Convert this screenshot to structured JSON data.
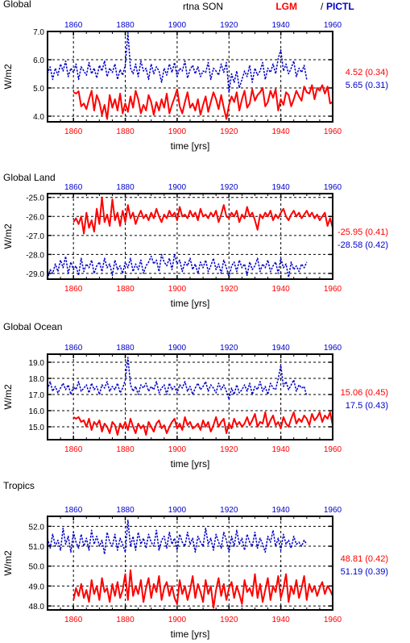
{
  "header": {
    "left_title": "Global",
    "center_title": "rtna SON",
    "legend_lgm": "LGM",
    "legend_sep": "/",
    "legend_pictl": "PICTL"
  },
  "colors": {
    "lgm": "#ff0000",
    "pictl": "#0000cc",
    "axis": "#000000"
  },
  "chart_data": [
    {
      "type": "line",
      "title": "Global",
      "xlabel": "time [yrs]",
      "ylabel": "W/m2",
      "xlim": [
        1850,
        1960
      ],
      "ylim": [
        3.8,
        7.0
      ],
      "x_ticks": [
        1860,
        1880,
        1900,
        1920,
        1940,
        1960
      ],
      "y_ticks": [
        4.0,
        5.0,
        6.0,
        7.0
      ],
      "y_tick_labels": [
        "4.0",
        "5.0",
        "6.0",
        "7.0"
      ],
      "grid": true,
      "series": [
        {
          "name": "LGM",
          "style": "solid",
          "x_start": 1860,
          "x_step": 1,
          "values": [
            4.85,
            4.8,
            4.88,
            4.35,
            4.45,
            4.25,
            4.6,
            4.9,
            4.2,
            4.75,
            4.5,
            4.05,
            4.4,
            3.9,
            4.75,
            4.3,
            4.6,
            4.2,
            4.8,
            4.1,
            4.45,
            4.15,
            4.7,
            4.3,
            4.9,
            4.6,
            4.1,
            4.4,
            4.2,
            4.75,
            4.5,
            4.05,
            4.5,
            4.2,
            4.6,
            4.3,
            4.8,
            4.1,
            4.4,
            4.65,
            4.95,
            4.35,
            4.1,
            4.5,
            4.85,
            4.3,
            4.45,
            4.2,
            4.6,
            4.05,
            4.4,
            4.7,
            4.15,
            4.5,
            4.85,
            4.6,
            4.25,
            4.75,
            4.3,
            3.9,
            4.4,
            4.7,
            4.5,
            4.85,
            4.2,
            4.6,
            4.9,
            4.3,
            4.45,
            4.95,
            4.55,
            4.75,
            4.85,
            5.0,
            4.35,
            4.5,
            4.9,
            4.65,
            4.95,
            4.2,
            4.6,
            4.4,
            4.85,
            4.75,
            4.35,
            4.6,
            4.9,
            4.7,
            4.55,
            5.05,
            4.85,
            4.8,
            5.1,
            4.6,
            5.0,
            4.9,
            5.1,
            4.8,
            5.05,
            4.45,
            4.5
          ],
          "label_mean": "4.52",
          "label_sd": "(0.34)"
        },
        {
          "name": "PICTL",
          "style": "dashed",
          "x_start": 1850,
          "x_step": 1,
          "values": [
            5.5,
            5.75,
            5.3,
            5.7,
            5.45,
            5.85,
            5.6,
            5.95,
            5.4,
            5.7,
            5.55,
            5.85,
            5.3,
            5.75,
            5.6,
            5.45,
            5.9,
            5.5,
            5.7,
            5.35,
            5.8,
            5.6,
            5.95,
            5.4,
            5.7,
            5.55,
            5.85,
            5.3,
            5.65,
            5.45,
            5.8,
            6.95,
            5.7,
            5.5,
            5.85,
            5.4,
            5.95,
            5.6,
            5.7,
            5.3,
            5.85,
            5.5,
            5.75,
            5.6,
            5.2,
            5.7,
            5.45,
            5.85,
            5.55,
            5.9,
            5.4,
            5.7,
            5.6,
            5.95,
            5.35,
            5.65,
            5.8,
            5.5,
            5.75,
            5.4,
            5.6,
            5.55,
            5.9,
            5.3,
            5.7,
            5.6,
            5.45,
            5.85,
            5.55,
            5.9,
            4.85,
            5.5,
            5.2,
            5.6,
            5.0,
            5.3,
            5.6,
            5.4,
            5.8,
            5.2,
            5.7,
            5.45,
            5.6,
            5.9,
            5.3,
            5.7,
            5.55,
            5.85,
            5.5,
            6.05,
            6.35,
            5.6,
            5.85,
            5.5,
            5.7,
            5.95,
            5.4,
            5.7,
            5.55,
            5.8,
            5.3
          ],
          "label_mean": "5.65",
          "label_sd": "(0.31)"
        }
      ]
    },
    {
      "type": "line",
      "title": "Global Land",
      "xlabel": "time [yrs]",
      "ylabel": "W/m2",
      "xlim": [
        1850,
        1960
      ],
      "ylim": [
        -29.3,
        -24.8
      ],
      "x_ticks": [
        1860,
        1880,
        1900,
        1920,
        1940,
        1960
      ],
      "y_ticks": [
        -29,
        -28,
        -27,
        -26,
        -25
      ],
      "y_tick_labels": [
        "-29.0",
        "-28.0",
        "-27.0",
        "-26.0",
        "-25.0"
      ],
      "grid": true,
      "series": [
        {
          "name": "LGM",
          "style": "solid",
          "x_start": 1860,
          "x_step": 1,
          "values": [
            -26.3,
            -26.1,
            -26.4,
            -26.0,
            -26.9,
            -25.8,
            -26.6,
            -26.2,
            -26.8,
            -25.6,
            -26.4,
            -25.0,
            -26.3,
            -25.9,
            -26.5,
            -25.1,
            -26.2,
            -25.8,
            -26.5,
            -25.7,
            -26.3,
            -25.4,
            -26.1,
            -25.8,
            -26.4,
            -26.0,
            -25.7,
            -26.1,
            -25.9,
            -26.2,
            -25.8,
            -26.1,
            -25.6,
            -26.0,
            -26.3,
            -25.9,
            -26.1,
            -25.7,
            -26.0,
            -25.8,
            -26.2,
            -25.5,
            -26.0,
            -25.9,
            -26.1,
            -25.7,
            -26.0,
            -25.8,
            -26.2,
            -25.6,
            -26.0,
            -25.9,
            -26.1,
            -25.8,
            -26.0,
            -25.7,
            -26.3,
            -25.9,
            -25.4,
            -26.0,
            -26.1,
            -25.8,
            -26.0,
            -25.7,
            -26.3,
            -25.9,
            -26.1,
            -25.5,
            -26.0,
            -25.8,
            -26.2,
            -26.7,
            -25.9,
            -26.1,
            -25.8,
            -26.0,
            -25.7,
            -26.2,
            -25.9,
            -26.1,
            -25.8,
            -25.6,
            -26.0,
            -26.2,
            -25.9,
            -25.7,
            -26.0,
            -25.8,
            -26.1,
            -25.9,
            -25.7,
            -26.0,
            -25.8,
            -26.1,
            -25.9,
            -26.2,
            -26.0,
            -25.8,
            -26.5,
            -26.1,
            -26.6
          ],
          "label_mean": "-25.95",
          "label_sd": "(0.41)"
        },
        {
          "name": "PICTL",
          "style": "dashed",
          "x_start": 1850,
          "x_step": 1,
          "values": [
            -29.3,
            -28.8,
            -29.0,
            -28.5,
            -28.9,
            -28.3,
            -28.7,
            -28.1,
            -29.0,
            -28.4,
            -28.8,
            -28.6,
            -29.1,
            -28.2,
            -28.9,
            -28.5,
            -28.7,
            -28.3,
            -29.0,
            -28.6,
            -28.4,
            -28.9,
            -28.2,
            -28.7,
            -28.5,
            -29.1,
            -28.3,
            -28.8,
            -28.6,
            -29.0,
            -28.4,
            -28.7,
            -28.2,
            -28.9,
            -28.5,
            -28.8,
            -28.3,
            -29.0,
            -28.6,
            -28.4,
            -28.1,
            -28.5,
            -28.3,
            -28.9,
            -28.0,
            -28.4,
            -28.6,
            -28.2,
            -28.8,
            -28.0,
            -28.5,
            -28.3,
            -28.9,
            -28.4,
            -28.6,
            -28.2,
            -28.8,
            -28.5,
            -29.0,
            -28.4,
            -28.7,
            -28.3,
            -28.9,
            -28.6,
            -28.2,
            -28.8,
            -28.5,
            -29.0,
            -28.3,
            -28.7,
            -29.2,
            -28.6,
            -28.4,
            -28.9,
            -28.3,
            -28.7,
            -28.5,
            -29.1,
            -28.4,
            -28.8,
            -28.6,
            -28.2,
            -28.9,
            -28.5,
            -28.7,
            -28.3,
            -28.9,
            -28.6,
            -28.4,
            -29.0,
            -28.2,
            -28.7,
            -28.5,
            -29.2,
            -28.4,
            -28.8,
            -28.6,
            -28.9,
            -28.5,
            -28.7,
            -28.4
          ],
          "label_mean": "-28.58",
          "label_sd": "(0.42)"
        }
      ]
    },
    {
      "type": "line",
      "title": "Global Ocean",
      "xlabel": "time [yrs]",
      "ylabel": "W/m2",
      "xlim": [
        1850,
        1960
      ],
      "ylim": [
        14.2,
        19.5
      ],
      "x_ticks": [
        1860,
        1880,
        1900,
        1920,
        1940,
        1960
      ],
      "y_ticks": [
        15,
        16,
        17,
        18,
        19
      ],
      "y_tick_labels": [
        "15.0",
        "16.0",
        "17.0",
        "18.0",
        "19.0"
      ],
      "grid": true,
      "series": [
        {
          "name": "LGM",
          "style": "solid",
          "x_start": 1860,
          "x_step": 1,
          "values": [
            15.6,
            15.5,
            15.6,
            15.3,
            15.4,
            15.0,
            15.5,
            14.8,
            15.3,
            15.1,
            15.4,
            14.7,
            15.2,
            15.0,
            14.6,
            15.3,
            15.1,
            14.5,
            15.2,
            14.9,
            15.3,
            14.8,
            15.5,
            15.0,
            14.6,
            15.2,
            14.9,
            15.1,
            14.5,
            15.3,
            15.0,
            14.7,
            15.2,
            15.4,
            14.9,
            15.1,
            14.6,
            15.0,
            15.3,
            15.5,
            14.9,
            15.2,
            14.8,
            15.6,
            15.1,
            15.3,
            14.9,
            15.0,
            15.2,
            14.8,
            15.4,
            15.0,
            15.3,
            14.7,
            15.1,
            15.6,
            15.0,
            15.3,
            15.5,
            14.6,
            15.2,
            14.9,
            15.5,
            15.1,
            15.3,
            15.0,
            15.2,
            15.6,
            15.1,
            15.4,
            15.8,
            15.0,
            15.3,
            15.2,
            15.9,
            15.0,
            15.4,
            15.7,
            15.1,
            15.3,
            14.9,
            15.6,
            15.2,
            15.0,
            15.5,
            15.9,
            15.2,
            15.5,
            15.3,
            15.7,
            15.5,
            15.1,
            15.8,
            15.4,
            15.6,
            15.9,
            15.3,
            15.7,
            15.5,
            15.9,
            15.1
          ],
          "label_mean": "15.06",
          "label_sd": "(0.45)"
        },
        {
          "name": "PICTL",
          "style": "dashed",
          "x_start": 1850,
          "x_step": 1,
          "values": [
            17.3,
            17.8,
            17.2,
            17.5,
            17.1,
            17.4,
            17.7,
            17.3,
            17.6,
            17.0,
            17.5,
            17.3,
            17.8,
            17.2,
            17.4,
            17.6,
            17.1,
            17.7,
            17.3,
            17.5,
            17.0,
            17.6,
            17.4,
            17.8,
            17.2,
            17.5,
            17.3,
            17.7,
            17.1,
            17.4,
            17.9,
            19.3,
            17.6,
            17.2,
            17.5,
            17.0,
            17.6,
            17.4,
            17.7,
            17.2,
            17.5,
            17.3,
            17.8,
            17.1,
            17.4,
            17.6,
            17.0,
            17.7,
            17.3,
            17.5,
            17.1,
            17.6,
            17.4,
            17.8,
            17.2,
            17.5,
            17.0,
            17.4,
            17.7,
            17.3,
            17.5,
            17.8,
            17.2,
            17.6,
            17.4,
            17.1,
            17.7,
            17.3,
            17.6,
            17.2,
            16.7,
            17.4,
            17.0,
            17.6,
            17.1,
            17.3,
            17.6,
            17.2,
            17.7,
            17.0,
            17.5,
            17.3,
            17.8,
            17.2,
            17.5,
            17.0,
            17.7,
            17.4,
            17.3,
            18.0,
            18.8,
            17.5,
            17.8,
            17.3,
            17.6,
            17.9,
            17.2,
            17.6,
            17.4,
            17.5,
            16.9
          ],
          "label_mean": "17.5",
          "label_sd": "(0.43)"
        }
      ]
    },
    {
      "type": "line",
      "title": "Tropics",
      "xlabel": "time [yrs]",
      "ylabel": "W/m2",
      "xlim": [
        1850,
        1960
      ],
      "ylim": [
        47.8,
        52.5
      ],
      "x_ticks": [
        1860,
        1880,
        1900,
        1920,
        1940,
        1960
      ],
      "y_ticks": [
        48,
        49,
        50,
        51,
        52
      ],
      "y_tick_labels": [
        "48.0",
        "49.0",
        "50.0",
        "51.0",
        "52.0"
      ],
      "grid": true,
      "series": [
        {
          "name": "LGM",
          "style": "solid",
          "x_start": 1860,
          "x_step": 1,
          "values": [
            48.3,
            48.9,
            48.5,
            49.1,
            48.4,
            48.8,
            48.2,
            49.3,
            48.6,
            49.0,
            48.3,
            49.4,
            48.7,
            48.9,
            48.2,
            49.1,
            48.5,
            49.2,
            48.4,
            48.8,
            49.6,
            48.3,
            49.8,
            48.5,
            49.0,
            48.6,
            49.3,
            48.2,
            48.9,
            49.4,
            48.4,
            49.1,
            48.7,
            49.5,
            48.3,
            48.9,
            49.2,
            48.5,
            49.0,
            48.4,
            48.1,
            49.3,
            48.6,
            49.0,
            48.3,
            48.8,
            49.5,
            48.4,
            49.1,
            48.7,
            48.2,
            49.3,
            48.6,
            49.0,
            47.9,
            48.8,
            49.4,
            48.5,
            49.1,
            48.3,
            48.9,
            49.2,
            48.4,
            49.0,
            48.6,
            48.1,
            49.3,
            48.7,
            48.9,
            48.5,
            49.6,
            48.4,
            49.1,
            48.2,
            48.8,
            49.4,
            48.3,
            49.0,
            48.7,
            49.5,
            48.4,
            48.9,
            49.6,
            48.2,
            49.0,
            48.6,
            49.3,
            48.4,
            48.9,
            49.5,
            48.3,
            49.1,
            48.7,
            49.0,
            48.5,
            48.9,
            49.2,
            48.6,
            49.0,
            48.8,
            48.5
          ],
          "label_mean": "48.81",
          "label_sd": "(0.42)"
        },
        {
          "name": "PICTL",
          "style": "dashed",
          "x_start": 1850,
          "x_step": 1,
          "values": [
            51.4,
            50.9,
            51.6,
            51.0,
            51.3,
            50.8,
            51.9,
            51.1,
            51.5,
            50.7,
            51.7,
            51.2,
            50.9,
            51.6,
            51.0,
            51.4,
            50.8,
            51.8,
            51.1,
            51.5,
            51.0,
            51.3,
            50.6,
            51.7,
            51.2,
            51.0,
            51.6,
            50.8,
            51.4,
            51.1,
            50.7,
            52.3,
            51.0,
            51.5,
            50.8,
            51.7,
            51.1,
            51.4,
            50.9,
            51.6,
            51.2,
            51.0,
            51.8,
            50.8,
            51.3,
            51.5,
            50.9,
            51.7,
            51.1,
            51.4,
            50.8,
            51.6,
            51.2,
            51.0,
            51.7,
            51.1,
            51.4,
            50.7,
            51.5,
            51.2,
            51.0,
            51.9,
            51.1,
            51.4,
            50.8,
            51.6,
            51.2,
            50.9,
            51.7,
            51.3,
            50.7,
            51.5,
            51.0,
            51.8,
            51.1,
            51.4,
            50.8,
            51.6,
            51.2,
            51.0,
            51.7,
            50.9,
            51.4,
            51.1,
            50.7,
            51.5,
            51.2,
            51.8,
            51.0,
            51.4,
            50.8,
            51.6,
            51.1,
            51.3,
            50.9,
            51.5,
            51.1,
            51.2,
            51.0,
            51.3,
            51.1
          ],
          "label_mean": "51.19",
          "label_sd": "(0.39)"
        }
      ]
    }
  ]
}
